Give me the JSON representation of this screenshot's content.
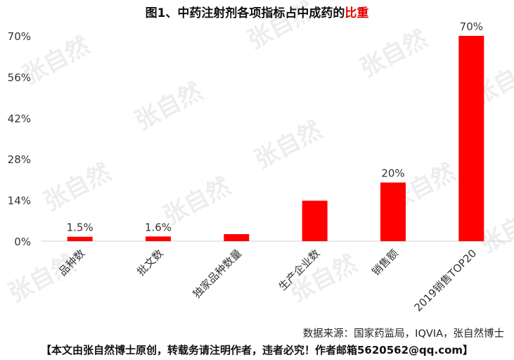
{
  "title": {
    "main": "图1、中药注射剂各项指标占中成药的",
    "highlight": "比重"
  },
  "watermark": "张自然",
  "chart_data": {
    "type": "bar",
    "categories": [
      "品种数",
      "批文数",
      "独家品种数量",
      "生产企业数",
      "销售额",
      "2019销售TOP20"
    ],
    "values": [
      1.5,
      1.6,
      2.4,
      13.8,
      20,
      70
    ],
    "data_labels": [
      "1.5%",
      "1.6%",
      "",
      "",
      "20%",
      "70%"
    ],
    "y_ticks": [
      "0%",
      "14%",
      "28%",
      "42%",
      "56%",
      "70%"
    ],
    "ylim": [
      0,
      70
    ],
    "bar_color": "#ff0000",
    "grid": false,
    "legend": "none"
  },
  "source": "数据来源：国家药监局，IQVIA，张自然博士",
  "footer": "【本文由张自然博士原创，转载务请注明作者，违者必究！作者邮箱5620562@qq.com】"
}
